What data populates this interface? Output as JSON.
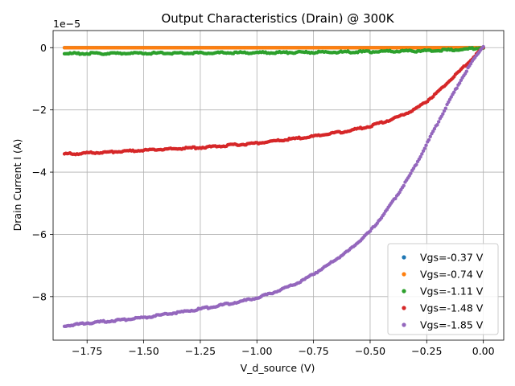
{
  "chart_data": {
    "type": "scatter",
    "title": "Output Characteristics (Drain) @ 300K",
    "xlabel": "V_d_source (V)",
    "ylabel": "Drain Current I (A)",
    "y_scale_label": "1e−5",
    "xlim": [
      -1.9,
      0.09
    ],
    "ylim": [
      -9.4,
      0.55
    ],
    "xticks": [
      -1.75,
      -1.5,
      -1.25,
      -1.0,
      -0.75,
      -0.5,
      -0.25,
      0.0
    ],
    "xtick_labels": [
      "−1.75",
      "−1.50",
      "−1.25",
      "−1.00",
      "−0.75",
      "−0.50",
      "−0.25",
      "0.00"
    ],
    "yticks": [
      -8,
      -6,
      -4,
      -2,
      0
    ],
    "ytick_labels": [
      "−8",
      "−6",
      "−4",
      "−2",
      "0"
    ],
    "grid": true,
    "legend_position": "lower-right",
    "series": [
      {
        "name": "Vgs=-0.37 V",
        "color": "#1f77b4",
        "points": [
          [
            -1.85,
            0.0
          ],
          [
            -1.5,
            0.0
          ],
          [
            -1.25,
            0.0
          ],
          [
            -1.0,
            0.0
          ],
          [
            -0.75,
            0.0
          ],
          [
            -0.5,
            0.0
          ],
          [
            -0.25,
            0.0
          ],
          [
            0.0,
            0.0
          ]
        ]
      },
      {
        "name": "Vgs=-0.74 V",
        "color": "#ff7f0e",
        "points": [
          [
            -1.85,
            0.0
          ],
          [
            -1.5,
            0.0
          ],
          [
            -1.25,
            0.0
          ],
          [
            -1.0,
            0.0
          ],
          [
            -0.75,
            0.0
          ],
          [
            -0.5,
            0.0
          ],
          [
            -0.25,
            0.0
          ],
          [
            0.0,
            0.0
          ]
        ]
      },
      {
        "name": "Vgs=-1.11 V",
        "color": "#2ca02c",
        "points": [
          [
            -1.85,
            -0.19
          ],
          [
            -1.5,
            -0.18
          ],
          [
            -1.25,
            -0.17
          ],
          [
            -1.0,
            -0.16
          ],
          [
            -0.75,
            -0.15
          ],
          [
            -0.5,
            -0.13
          ],
          [
            -0.25,
            -0.1
          ],
          [
            -0.1,
            -0.06
          ],
          [
            0.0,
            0.0
          ]
        ]
      },
      {
        "name": "Vgs=-1.48 V",
        "color": "#d62728",
        "points": [
          [
            -1.85,
            -3.42
          ],
          [
            -1.75,
            -3.39
          ],
          [
            -1.5,
            -3.3
          ],
          [
            -1.25,
            -3.21
          ],
          [
            -1.0,
            -3.07
          ],
          [
            -0.75,
            -2.85
          ],
          [
            -0.6,
            -2.68
          ],
          [
            -0.5,
            -2.52
          ],
          [
            -0.4,
            -2.3
          ],
          [
            -0.3,
            -1.97
          ],
          [
            -0.25,
            -1.72
          ],
          [
            -0.2,
            -1.42
          ],
          [
            -0.15,
            -1.07
          ],
          [
            -0.1,
            -0.72
          ],
          [
            -0.05,
            -0.36
          ],
          [
            0.0,
            0.0
          ]
        ]
      },
      {
        "name": "Vgs=-1.85 V",
        "color": "#9467bd",
        "points": [
          [
            -1.85,
            -8.95
          ],
          [
            -1.75,
            -8.85
          ],
          [
            -1.5,
            -8.68
          ],
          [
            -1.25,
            -8.4
          ],
          [
            -1.0,
            -8.05
          ],
          [
            -0.9,
            -7.8
          ],
          [
            -0.8,
            -7.5
          ],
          [
            -0.7,
            -7.05
          ],
          [
            -0.6,
            -6.55
          ],
          [
            -0.5,
            -5.9
          ],
          [
            -0.45,
            -5.45
          ],
          [
            -0.4,
            -4.95
          ],
          [
            -0.35,
            -4.4
          ],
          [
            -0.3,
            -3.8
          ],
          [
            -0.25,
            -3.1
          ],
          [
            -0.2,
            -2.4
          ],
          [
            -0.15,
            -1.7
          ],
          [
            -0.1,
            -1.05
          ],
          [
            -0.05,
            -0.45
          ],
          [
            0.0,
            0.05
          ]
        ]
      }
    ]
  }
}
